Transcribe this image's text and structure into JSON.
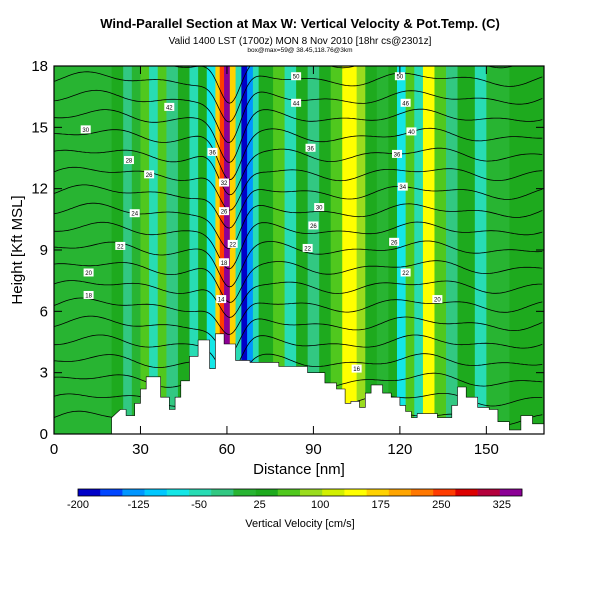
{
  "titles": {
    "main": "Wind-Parallel Section at Max W: Vertical Velocity & Pot.Temp. (C)",
    "valid": "Valid 1400 LST (1700z) MON 8 Nov 2010 [18hr cs@2301z]",
    "location": "box@max=59@ 38.45,118.76@3km"
  },
  "chart_data": {
    "type": "heatmap",
    "title": "Wind-Parallel Section at Max W: Vertical Velocity & Pot.Temp. (C)",
    "xlabel": "Distance [nm]",
    "ylabel": "Height [Kft MSL]",
    "xlim": [
      0,
      170
    ],
    "ylim": [
      0,
      18
    ],
    "xticks": [
      "0",
      "30",
      "60",
      "90",
      "120",
      "150"
    ],
    "yticks": [
      "0",
      "3",
      "6",
      "9",
      "12",
      "15",
      "18"
    ],
    "xtick_values": [
      0,
      30,
      60,
      90,
      120,
      150
    ],
    "ytick_values": [
      0,
      3,
      6,
      9,
      12,
      15,
      18
    ],
    "colorbar": {
      "label": "Vertical Velocity [cm/s]",
      "tick_labels": [
        "-200",
        "-125",
        "-50",
        "25",
        "100",
        "175",
        "250",
        "325"
      ],
      "min": -200,
      "max": 350,
      "colors": [
        "#0000c8",
        "#0046ff",
        "#0096ff",
        "#00c8ff",
        "#14e6e6",
        "#28dcb4",
        "#32c882",
        "#28b432",
        "#1eaa1e",
        "#50c81e",
        "#9adc1e",
        "#d2f000",
        "#ffff00",
        "#ffd200",
        "#ffa500",
        "#ff7800",
        "#ff3c00",
        "#dc0000",
        "#b4003c",
        "#8c0096"
      ]
    },
    "columns": [
      {
        "x_start": 0,
        "x_end": 5,
        "value": -5
      },
      {
        "x_start": 5,
        "x_end": 20,
        "value": 10
      },
      {
        "x_start": 20,
        "x_end": 24,
        "value": 45
      },
      {
        "x_start": 24,
        "x_end": 27,
        "value": -25
      },
      {
        "x_start": 27,
        "x_end": 30,
        "value": 15
      },
      {
        "x_start": 30,
        "x_end": 33,
        "value": 70
      },
      {
        "x_start": 33,
        "x_end": 36,
        "value": -60
      },
      {
        "x_start": 36,
        "x_end": 39,
        "value": 60
      },
      {
        "x_start": 39,
        "x_end": 43,
        "value": -30
      },
      {
        "x_start": 43,
        "x_end": 47,
        "value": 20
      },
      {
        "x_start": 47,
        "x_end": 50,
        "value": -45
      },
      {
        "x_start": 50,
        "x_end": 53,
        "value": 35
      },
      {
        "x_start": 53,
        "x_end": 56,
        "value": -75
      },
      {
        "x_start": 56,
        "x_end": 57.5,
        "value": 160
      },
      {
        "x_start": 57.5,
        "x_end": 59,
        "value": 260
      },
      {
        "x_start": 59,
        "x_end": 61,
        "value": 330
      },
      {
        "x_start": 61,
        "x_end": 63,
        "value": 160
      },
      {
        "x_start": 63,
        "x_end": 65,
        "value": -60
      },
      {
        "x_start": 65,
        "x_end": 67,
        "value": -190
      },
      {
        "x_start": 67,
        "x_end": 69,
        "value": -120
      },
      {
        "x_start": 69,
        "x_end": 71,
        "value": -40
      },
      {
        "x_start": 71,
        "x_end": 76,
        "value": 20
      },
      {
        "x_start": 76,
        "x_end": 80,
        "value": 60
      },
      {
        "x_start": 80,
        "x_end": 84,
        "value": -40
      },
      {
        "x_start": 84,
        "x_end": 88,
        "value": 30
      },
      {
        "x_start": 88,
        "x_end": 92,
        "value": -15
      },
      {
        "x_start": 92,
        "x_end": 96,
        "value": 25
      },
      {
        "x_start": 96,
        "x_end": 100,
        "value": 70
      },
      {
        "x_start": 100,
        "x_end": 105,
        "value": 150
      },
      {
        "x_start": 105,
        "x_end": 108,
        "value": 90
      },
      {
        "x_start": 108,
        "x_end": 112,
        "value": 35
      },
      {
        "x_start": 112,
        "x_end": 116,
        "value": 0
      },
      {
        "x_start": 116,
        "x_end": 119,
        "value": 25
      },
      {
        "x_start": 119,
        "x_end": 122,
        "value": -65
      },
      {
        "x_start": 122,
        "x_end": 125,
        "value": 70
      },
      {
        "x_start": 125,
        "x_end": 128,
        "value": -40
      },
      {
        "x_start": 128,
        "x_end": 132,
        "value": 140
      },
      {
        "x_start": 132,
        "x_end": 136,
        "value": 60
      },
      {
        "x_start": 136,
        "x_end": 140,
        "value": -25
      },
      {
        "x_start": 140,
        "x_end": 146,
        "value": 20
      },
      {
        "x_start": 146,
        "x_end": 150,
        "value": -40
      },
      {
        "x_start": 150,
        "x_end": 158,
        "value": 15
      },
      {
        "x_start": 158,
        "x_end": 170,
        "value": 30
      }
    ],
    "terrain_kft": [
      [
        0,
        0
      ],
      [
        20,
        0
      ],
      [
        20,
        0.8
      ],
      [
        23,
        1.2
      ],
      [
        25,
        1.2
      ],
      [
        25,
        0.9
      ],
      [
        28,
        0.9
      ],
      [
        28,
        1.5
      ],
      [
        30,
        1.5
      ],
      [
        30,
        2.2
      ],
      [
        32,
        2.2
      ],
      [
        32,
        2.8
      ],
      [
        37,
        2.8
      ],
      [
        37,
        1.8
      ],
      [
        40,
        1.8
      ],
      [
        40,
        1.2
      ],
      [
        42,
        1.2
      ],
      [
        42,
        1.8
      ],
      [
        44,
        1.8
      ],
      [
        44,
        2.6
      ],
      [
        47,
        2.6
      ],
      [
        47,
        3.8
      ],
      [
        50,
        3.8
      ],
      [
        50,
        4.6
      ],
      [
        54,
        4.6
      ],
      [
        54,
        3.2
      ],
      [
        56,
        3.2
      ],
      [
        56,
        4.9
      ],
      [
        59,
        4.9
      ],
      [
        59,
        4.4
      ],
      [
        63,
        4.4
      ],
      [
        63,
        3.6
      ],
      [
        68,
        3.6
      ],
      [
        68,
        3.5
      ],
      [
        78,
        3.5
      ],
      [
        78,
        3.3
      ],
      [
        88,
        3.3
      ],
      [
        88,
        3.0
      ],
      [
        94,
        3.0
      ],
      [
        94,
        2.5
      ],
      [
        98,
        2.5
      ],
      [
        98,
        2.2
      ],
      [
        101,
        2.2
      ],
      [
        101,
        1.5
      ],
      [
        103,
        1.5
      ],
      [
        103,
        1.6
      ],
      [
        106,
        1.6
      ],
      [
        106,
        1.3
      ],
      [
        108,
        1.3
      ],
      [
        108,
        2.0
      ],
      [
        110,
        2.0
      ],
      [
        110,
        2.4
      ],
      [
        114,
        2.4
      ],
      [
        114,
        2.0
      ],
      [
        117,
        2.0
      ],
      [
        117,
        1.8
      ],
      [
        120,
        1.8
      ],
      [
        120,
        1.4
      ],
      [
        122,
        1.4
      ],
      [
        122,
        1.1
      ],
      [
        124,
        1.1
      ],
      [
        124,
        0.8
      ],
      [
        126,
        0.8
      ],
      [
        126,
        1.0
      ],
      [
        133,
        1.0
      ],
      [
        133,
        0.8
      ],
      [
        138,
        0.8
      ],
      [
        138,
        1.4
      ],
      [
        140,
        1.4
      ],
      [
        140,
        2.3
      ],
      [
        143,
        2.3
      ],
      [
        143,
        1.8
      ],
      [
        147,
        1.8
      ],
      [
        147,
        1.3
      ],
      [
        151,
        1.3
      ],
      [
        151,
        1.2
      ],
      [
        154,
        1.2
      ],
      [
        154,
        0.6
      ],
      [
        158,
        0.6
      ],
      [
        158,
        0.2
      ],
      [
        162,
        0.2
      ],
      [
        162,
        0.9
      ],
      [
        166,
        0.9
      ],
      [
        166,
        0.5
      ],
      [
        170,
        0.5
      ],
      [
        170,
        0
      ]
    ],
    "isentrope_labels": [
      {
        "x": 11,
        "y": 14.9,
        "text": "30"
      },
      {
        "x": 26,
        "y": 13.4,
        "text": "28"
      },
      {
        "x": 33,
        "y": 12.7,
        "text": "26"
      },
      {
        "x": 28,
        "y": 10.8,
        "text": "24"
      },
      {
        "x": 23,
        "y": 9.2,
        "text": "22"
      },
      {
        "x": 12,
        "y": 7.9,
        "text": "20"
      },
      {
        "x": 12,
        "y": 6.8,
        "text": "18"
      },
      {
        "x": 40,
        "y": 16.0,
        "text": "42"
      },
      {
        "x": 55,
        "y": 13.8,
        "text": "36"
      },
      {
        "x": 59,
        "y": 12.3,
        "text": "32"
      },
      {
        "x": 59,
        "y": 10.9,
        "text": "26"
      },
      {
        "x": 62,
        "y": 9.3,
        "text": "22"
      },
      {
        "x": 59,
        "y": 8.4,
        "text": "18"
      },
      {
        "x": 58,
        "y": 6.6,
        "text": "14"
      },
      {
        "x": 84,
        "y": 17.5,
        "text": "50"
      },
      {
        "x": 84,
        "y": 16.2,
        "text": "44"
      },
      {
        "x": 89,
        "y": 14.0,
        "text": "36"
      },
      {
        "x": 92,
        "y": 11.1,
        "text": "30"
      },
      {
        "x": 90,
        "y": 10.2,
        "text": "26"
      },
      {
        "x": 88,
        "y": 9.1,
        "text": "22"
      },
      {
        "x": 120,
        "y": 17.5,
        "text": "50"
      },
      {
        "x": 122,
        "y": 16.2,
        "text": "46"
      },
      {
        "x": 124,
        "y": 14.8,
        "text": "40"
      },
      {
        "x": 119,
        "y": 13.7,
        "text": "36"
      },
      {
        "x": 121,
        "y": 12.1,
        "text": "34"
      },
      {
        "x": 118,
        "y": 9.4,
        "text": "26"
      },
      {
        "x": 122,
        "y": 7.9,
        "text": "22"
      },
      {
        "x": 133,
        "y": 6.6,
        "text": "20"
      },
      {
        "x": 105,
        "y": 3.2,
        "text": "16"
      }
    ]
  }
}
